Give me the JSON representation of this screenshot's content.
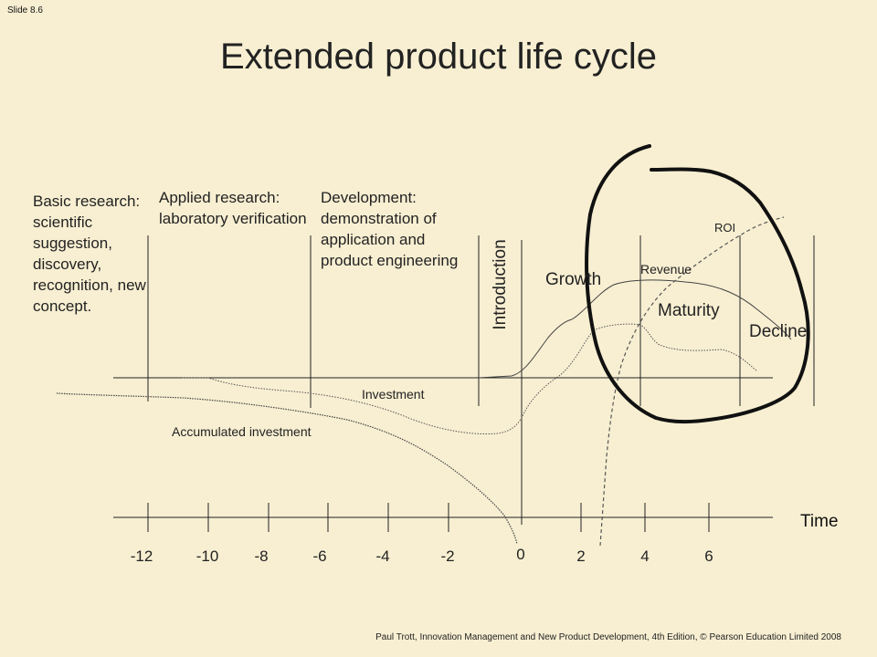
{
  "slide": {
    "number": "Slide 8.6",
    "title": "Extended product life cycle"
  },
  "phases": {
    "basic": "Basic research: scientific suggestion, discovery, recognition, new concept.",
    "applied": "Applied research: laboratory verification",
    "development": "Development: demonstration of application and product engineering"
  },
  "stages": {
    "introduction": "Introduction",
    "growth": "Growth",
    "maturity": "Maturity",
    "decline": "Decline"
  },
  "curves": {
    "revenue": "Revenue",
    "roi": "ROI",
    "investment": "Investment",
    "accumulated_investment": "Accumulated investment"
  },
  "axis": {
    "label": "Time",
    "ticks": [
      "-12",
      "-10",
      "-8",
      "-6",
      "-4",
      "-2",
      "0",
      "2",
      "4",
      "6"
    ]
  },
  "footer": {
    "credit": "Paul Trott, Innovation Management and New Product Development, 4th Edition, © Pearson Education Limited 2008"
  },
  "colors": {
    "background": "#f8efd2",
    "ink": "#111111"
  }
}
